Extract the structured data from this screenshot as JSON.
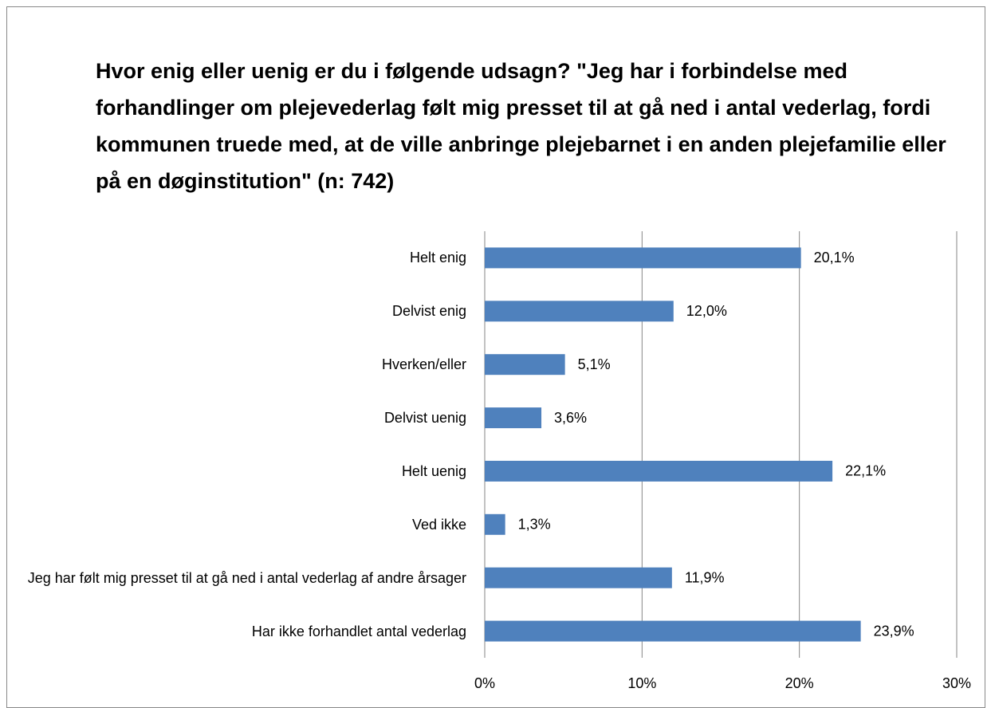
{
  "chart_data": {
    "type": "bar",
    "orientation": "horizontal",
    "title": "Hvor enig eller uenig er du i følgende udsagn? \"Jeg har i forbindelse med forhandlinger om plejevederlag følt mig presset til at gå ned i antal vederlag, fordi kommunen truede med, at de ville anbringe plejebarnet i en anden plejefamilie eller på en døginstitution\" (n: 742)",
    "categories": [
      "Helt enig",
      "Delvist enig",
      "Hverken/eller",
      "Delvist uenig",
      "Helt uenig",
      "Ved ikke",
      "Jeg har følt mig presset til at gå ned i antal vederlag af andre årsager",
      "Har ikke forhandlet antal vederlag"
    ],
    "values": [
      20.1,
      12.0,
      5.1,
      3.6,
      22.1,
      1.3,
      11.9,
      23.9
    ],
    "value_labels": [
      "20,1%",
      "12,0%",
      "5,1%",
      "3,6%",
      "22,1%",
      "1,3%",
      "11,9%",
      "23,9%"
    ],
    "color": "#4f81bd",
    "xlim": [
      0,
      30
    ],
    "xticks": [
      {
        "value": 0,
        "label": "0%"
      },
      {
        "value": 10,
        "label": "10%"
      },
      {
        "value": 20,
        "label": "20%"
      },
      {
        "value": 30,
        "label": "30%"
      }
    ],
    "grid": true
  }
}
